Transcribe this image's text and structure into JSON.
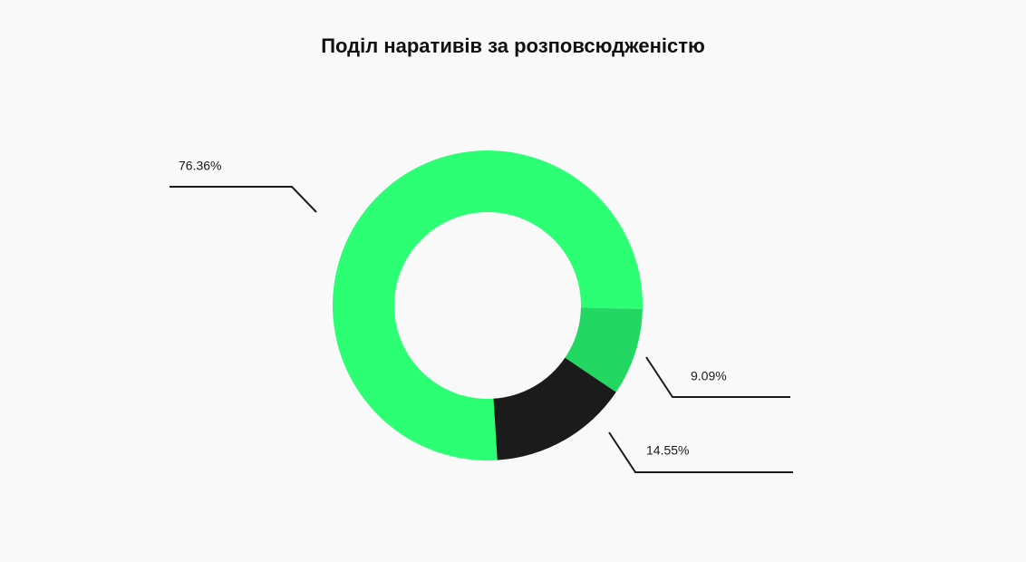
{
  "chart_data": {
    "type": "donut",
    "title": "Поділ наративів за розповсюдженістю",
    "values": [
      76.36,
      9.09,
      14.55
    ],
    "value_labels": [
      "76.36%",
      "9.09%",
      "14.55%"
    ],
    "colors": [
      "#2cff73",
      "#22d863",
      "#1b1b1b"
    ]
  }
}
